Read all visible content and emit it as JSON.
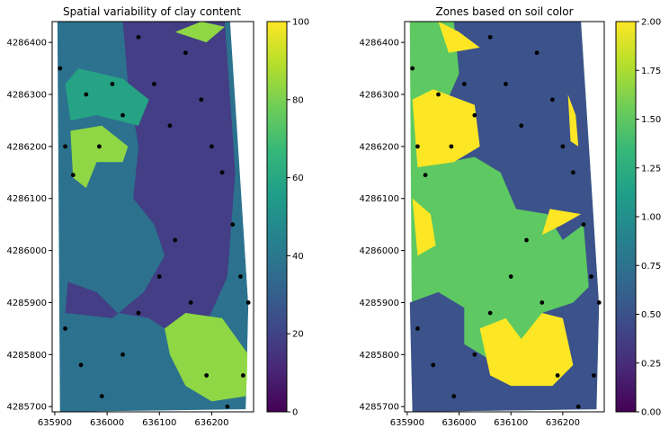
{
  "chart_data": [
    {
      "type": "heatmap",
      "title": "Spatial variability of clay content",
      "xlabel": "",
      "ylabel": "",
      "xlim": [
        635895,
        636280
      ],
      "ylim": [
        4285690,
        4286440
      ],
      "x_ticks": [
        "635900",
        "636000",
        "636100",
        "636200"
      ],
      "y_ticks": [
        "4285700",
        "4285800",
        "4285900",
        "4286000",
        "4286100",
        "4286200",
        "4286300",
        "4286400"
      ],
      "colorbar": {
        "range": [
          0,
          100
        ],
        "ticks": [
          "0",
          "20",
          "40",
          "60",
          "80",
          "100"
        ],
        "colormap": "viridis"
      },
      "levels": [
        {
          "range": [
            20,
            40
          ],
          "color": "#433e85"
        },
        {
          "range": [
            40,
            60
          ],
          "color": "#2c728e"
        },
        {
          "range": [
            60,
            80
          ],
          "color": "#26a384"
        },
        {
          "range": [
            80,
            100
          ],
          "color": "#8fd744"
        }
      ],
      "points": [
        [
          635910,
          4286350
        ],
        [
          635920,
          4286200
        ],
        [
          635935,
          4286145
        ],
        [
          635960,
          4286300
        ],
        [
          635985,
          4286200
        ],
        [
          636010,
          4286320
        ],
        [
          636030,
          4286260
        ],
        [
          636060,
          4286410
        ],
        [
          636090,
          4286320
        ],
        [
          636120,
          4286240
        ],
        [
          636150,
          4286380
        ],
        [
          636180,
          4286290
        ],
        [
          636200,
          4286200
        ],
        [
          636220,
          4286150
        ],
        [
          636240,
          4286050
        ],
        [
          636255,
          4285950
        ],
        [
          636270,
          4285900
        ],
        [
          635920,
          4285850
        ],
        [
          635950,
          4285780
        ],
        [
          635990,
          4285720
        ],
        [
          636030,
          4285800
        ],
        [
          636060,
          4285880
        ],
        [
          636100,
          4285950
        ],
        [
          636130,
          4286020
        ],
        [
          636160,
          4285900
        ],
        [
          636190,
          4285760
        ],
        [
          636230,
          4285700
        ],
        [
          636260,
          4285760
        ]
      ]
    },
    {
      "type": "heatmap",
      "title": "Zones based on soil color",
      "xlabel": "",
      "ylabel": "",
      "xlim": [
        635895,
        636280
      ],
      "ylim": [
        4285690,
        4286440
      ],
      "x_ticks": [
        "635900",
        "636000",
        "636100",
        "636200"
      ],
      "y_ticks": [
        "4285700",
        "4285800",
        "4285900",
        "4286000",
        "4286100",
        "4286200",
        "4286300",
        "4286400"
      ],
      "colorbar": {
        "range": [
          0,
          2
        ],
        "ticks": [
          "0.00",
          "0.25",
          "0.50",
          "0.75",
          "1.00",
          "1.25",
          "1.50",
          "1.75",
          "2.00"
        ],
        "colormap": "viridis"
      },
      "levels": [
        {
          "range": [
            0.25,
            0.75
          ],
          "color": "#3b528b"
        },
        {
          "range": [
            1.25,
            1.75
          ],
          "color": "#5ec962"
        },
        {
          "range": [
            1.75,
            2.0
          ],
          "color": "#fde725"
        }
      ],
      "points": [
        [
          635910,
          4286350
        ],
        [
          635920,
          4286200
        ],
        [
          635935,
          4286145
        ],
        [
          635960,
          4286300
        ],
        [
          635985,
          4286200
        ],
        [
          636010,
          4286320
        ],
        [
          636030,
          4286260
        ],
        [
          636060,
          4286410
        ],
        [
          636090,
          4286320
        ],
        [
          636120,
          4286240
        ],
        [
          636150,
          4286380
        ],
        [
          636180,
          4286290
        ],
        [
          636200,
          4286200
        ],
        [
          636220,
          4286150
        ],
        [
          636240,
          4286050
        ],
        [
          636255,
          4285950
        ],
        [
          636270,
          4285900
        ],
        [
          635920,
          4285850
        ],
        [
          635950,
          4285780
        ],
        [
          635990,
          4285720
        ],
        [
          636030,
          4285800
        ],
        [
          636060,
          4285880
        ],
        [
          636100,
          4285950
        ],
        [
          636130,
          4286020
        ],
        [
          636160,
          4285900
        ],
        [
          636190,
          4285760
        ],
        [
          636230,
          4285700
        ],
        [
          636260,
          4285760
        ]
      ]
    }
  ]
}
